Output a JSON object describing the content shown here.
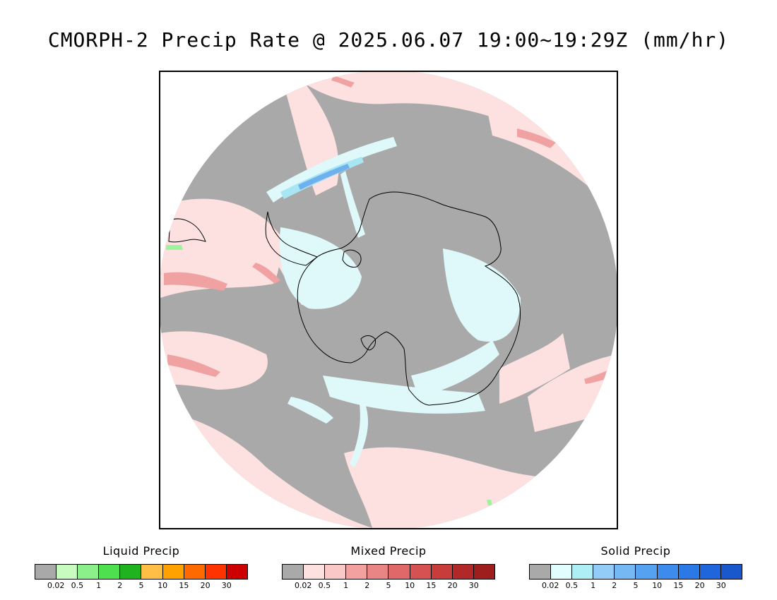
{
  "title": "CMORPH-2 Precip Rate @ 2025.06.07 19:00~19:29Z (mm/hr)",
  "map": {
    "projection": "south-polar-stereographic",
    "colors": {
      "no_precip": "#a9a9a9",
      "mixed_light": "#fde1e1",
      "mixed_moderate": "#f0a2a2",
      "mixed_heavy": "#e07a7a",
      "solid_light": "#dff9fb",
      "solid_moderate": "#a8e6f4",
      "solid_heavy": "#6fb0ee",
      "liquid_light": "#9cf59c",
      "coastline": "#000000"
    }
  },
  "legends": [
    {
      "title": "Liquid Precip",
      "ticks": [
        "0.02",
        "0.5",
        "1",
        "2",
        "5",
        "10",
        "15",
        "20",
        "30"
      ],
      "colors": [
        "#a9a9a9",
        "#c7fbc0",
        "#8cf08a",
        "#4fe04f",
        "#1fb41f",
        "#ffbf47",
        "#ffa200",
        "#ff6a00",
        "#ff3300",
        "#cc0000"
      ]
    },
    {
      "title": "Mixed Precip",
      "ticks": [
        "0.02",
        "0.5",
        "1",
        "2",
        "5",
        "10",
        "15",
        "20",
        "30"
      ],
      "colors": [
        "#a9a9a9",
        "#fde1e1",
        "#fbc8c8",
        "#f2a0a0",
        "#ea8585",
        "#e06868",
        "#d65252",
        "#c83c3c",
        "#b22828",
        "#9e1e1e"
      ]
    },
    {
      "title": "Solid Precip",
      "ticks": [
        "0.02",
        "0.5",
        "1",
        "2",
        "5",
        "10",
        "15",
        "20",
        "30"
      ],
      "colors": [
        "#a9a9a9",
        "#e1fdfd",
        "#aeeff6",
        "#93cdf7",
        "#76b8f3",
        "#55a3f0",
        "#3d8ced",
        "#2a79e6",
        "#1f66dd",
        "#1957cc"
      ]
    }
  ]
}
